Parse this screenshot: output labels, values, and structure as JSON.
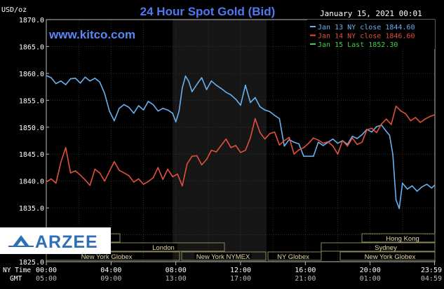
{
  "chart_data": {
    "type": "line",
    "title": "24 Hour Spot Gold (Bid)",
    "ylabel": "USD/oz",
    "timestamp": "January 15, 2021 00:01",
    "website": "www.kitco.com",
    "watermark": "ARZEE",
    "ylim": [
      1825,
      1870
    ],
    "yticks": [
      "1870.0",
      "1865.0",
      "1860.0",
      "1855.0",
      "1850.0",
      "1845.0",
      "1840.0",
      "1835.0",
      "1825.0"
    ],
    "x_labels_ny": [
      "00:00",
      "04:00",
      "08:00",
      "12:00",
      "16:00",
      "20:00",
      "23:59"
    ],
    "x_labels_gmt": [
      "05:00",
      "09:00",
      "13:00",
      "17:00",
      "21:00",
      "01:00",
      "04:59"
    ],
    "x_axis_row_labels": {
      "ny": "NY Time",
      "gmt": "GMT"
    },
    "legend": [
      {
        "label": "Jan 13 NY close 1844.60",
        "color": "#6ab0ee"
      },
      {
        "label": "Jan 14 NY close 1846.60",
        "color": "#e0503c"
      },
      {
        "label": "Jan 15 Last 1852.30",
        "color": "#4ccb4c"
      }
    ],
    "sessions": [
      {
        "name": "Hong Kong"
      },
      {
        "name": "Sydney"
      },
      {
        "name": "London"
      },
      {
        "name": "New York Globex"
      },
      {
        "name": "New York NYMEX"
      },
      {
        "name": "NY Globex"
      },
      {
        "name": "New York Globex"
      }
    ],
    "series": [
      {
        "name": "Jan 13 NY close 1844.60",
        "color": "#6ab0ee",
        "x": [
          0,
          0.3,
          0.6,
          0.9,
          1.2,
          1.5,
          1.8,
          2.1,
          2.4,
          2.7,
          3.0,
          3.3,
          3.6,
          3.9,
          4.2,
          4.5,
          4.8,
          5.1,
          5.4,
          5.7,
          6.0,
          6.3,
          6.6,
          6.9,
          7.2,
          7.5,
          7.8,
          8.0,
          8.2,
          8.4,
          8.6,
          8.8,
          9.0,
          9.2,
          9.4,
          9.6,
          9.9,
          10.2,
          10.5,
          10.8,
          11.1,
          11.4,
          11.7,
          12.0,
          12.3,
          12.6,
          12.9,
          13.2,
          13.5,
          13.8,
          14.1,
          14.4,
          14.7,
          15.0,
          15.3,
          15.6,
          15.9,
          16.2,
          16.5,
          16.8,
          17.1,
          17.4,
          17.7,
          18.0,
          18.3,
          18.6,
          18.9,
          19.2,
          19.5,
          19.8,
          20.1,
          20.4,
          20.7,
          21.0,
          21.2,
          21.4,
          21.6,
          21.8,
          22.0,
          22.3,
          22.6,
          22.9,
          23.2,
          23.5,
          23.8,
          23.98
        ],
        "values": [
          1859.6,
          1859.2,
          1858.1,
          1858.6,
          1857.9,
          1859.0,
          1859.1,
          1858.2,
          1859.3,
          1858.6,
          1859.1,
          1858.4,
          1856.3,
          1853.0,
          1851.2,
          1853.5,
          1854.2,
          1853.7,
          1852.6,
          1854.0,
          1853.2,
          1854.8,
          1854.2,
          1853.0,
          1853.5,
          1853.2,
          1852.6,
          1851.0,
          1853.0,
          1857.3,
          1859.5,
          1858.5,
          1856.6,
          1857.5,
          1858.4,
          1859.2,
          1857.0,
          1858.6,
          1857.8,
          1857.2,
          1856.5,
          1856.0,
          1855.2,
          1854.1,
          1857.8,
          1854.6,
          1855.5,
          1853.8,
          1853.2,
          1852.9,
          1852.2,
          1851.6,
          1846.5,
          1847.7,
          1847.2,
          1846.9,
          1844.6,
          1844.6,
          1844.6,
          1847.2,
          1846.6,
          1847.2,
          1847.8,
          1847.0,
          1847.5,
          1846.8,
          1848.3,
          1847.9,
          1848.6,
          1849.6,
          1849.1,
          1850.1,
          1850.4,
          1849.2,
          1848.5,
          1845.0,
          1836.5,
          1834.9,
          1839.6,
          1838.5,
          1839.1,
          1838.1,
          1838.9,
          1839.4,
          1838.7,
          1839.2
        ]
      },
      {
        "name": "Jan 14 NY close 1846.60",
        "color": "#e0503c",
        "x": [
          0,
          0.3,
          0.6,
          0.9,
          1.2,
          1.5,
          1.8,
          2.1,
          2.4,
          2.7,
          3.0,
          3.3,
          3.6,
          3.9,
          4.2,
          4.5,
          4.8,
          5.1,
          5.4,
          5.7,
          6.0,
          6.3,
          6.6,
          6.9,
          7.2,
          7.5,
          7.8,
          8.1,
          8.4,
          8.7,
          9.0,
          9.3,
          9.6,
          9.9,
          10.2,
          10.5,
          10.8,
          11.1,
          11.4,
          11.7,
          12.0,
          12.3,
          12.6,
          12.9,
          13.2,
          13.5,
          13.8,
          14.1,
          14.4,
          14.7,
          15.0,
          15.3,
          15.6,
          15.9,
          16.2,
          16.5,
          16.8,
          17.1,
          17.4,
          17.7,
          18.0,
          18.3,
          18.6,
          18.9,
          19.2,
          19.5,
          19.8,
          20.1,
          20.4,
          20.7,
          21.0,
          21.3,
          21.6,
          21.9,
          22.2,
          22.5,
          22.8,
          23.1,
          23.4,
          23.7,
          23.98
        ],
        "values": [
          1839.8,
          1840.4,
          1839.6,
          1843.5,
          1846.2,
          1841.5,
          1841.9,
          1841.1,
          1840.2,
          1839.2,
          1842.2,
          1841.5,
          1840.0,
          1841.8,
          1843.6,
          1842.0,
          1841.5,
          1841.0,
          1839.8,
          1840.4,
          1839.4,
          1839.9,
          1840.6,
          1842.5,
          1840.3,
          1842.2,
          1840.8,
          1841.3,
          1839.1,
          1843.2,
          1844.6,
          1844.7,
          1843.0,
          1844.0,
          1845.7,
          1845.4,
          1846.6,
          1847.8,
          1846.2,
          1846.6,
          1845.3,
          1845.7,
          1848.0,
          1851.6,
          1849.0,
          1847.8,
          1848.8,
          1849.1,
          1846.7,
          1847.5,
          1848.1,
          1845.0,
          1845.8,
          1846.2,
          1847.0,
          1848.0,
          1847.6,
          1847.0,
          1847.3,
          1846.5,
          1845.0,
          1847.5,
          1846.5,
          1848.0,
          1846.8,
          1847.2,
          1849.5,
          1849.8,
          1849.0,
          1850.6,
          1851.5,
          1850.5,
          1853.9,
          1853.0,
          1852.5,
          1851.2,
          1851.8,
          1850.9,
          1851.5,
          1852.0,
          1852.3
        ]
      }
    ]
  }
}
